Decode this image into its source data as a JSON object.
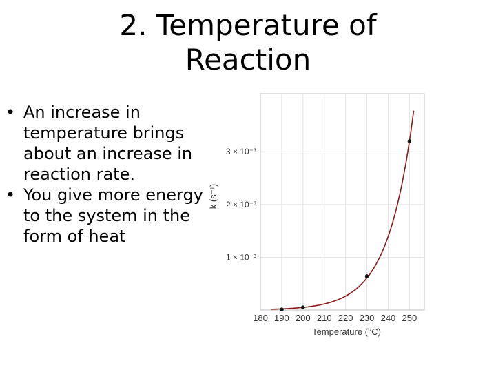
{
  "slide": {
    "title_line1": "2. Temperature of",
    "title_line2": "Reaction",
    "bullets": [
      "An increase in temperature brings about an increase in reaction rate.",
      "You give more energy to the system in the form of heat"
    ]
  },
  "chart_data": {
    "type": "line",
    "title": "",
    "xlabel": "Temperature (°C)",
    "ylabel": "k (s⁻¹)",
    "x_ticks": [
      "180",
      "190",
      "200",
      "210",
      "220",
      "230",
      "240",
      "250"
    ],
    "y_ticks": [
      {
        "value": 0.001,
        "label": "1 × 10⁻³"
      },
      {
        "value": 0.002,
        "label": "2 × 10⁻³"
      },
      {
        "value": 0.003,
        "label": "3 × 10⁻³"
      }
    ],
    "xlim": [
      180,
      257
    ],
    "ylim": [
      0,
      0.0041
    ],
    "grid": true,
    "series": [
      {
        "color": "#8b1a1a",
        "points": [
          {
            "x": 190,
            "y": 1e-05
          },
          {
            "x": 200,
            "y": 5e-05
          },
          {
            "x": 230,
            "y": 0.00064
          },
          {
            "x": 250,
            "y": 0.0032
          }
        ]
      }
    ]
  }
}
